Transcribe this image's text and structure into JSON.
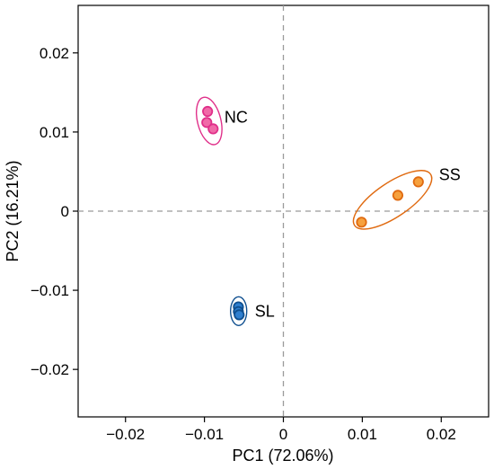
{
  "chart_data": {
    "type": "scatter",
    "title": "",
    "xlabel": "PC1 (72.06%)",
    "ylabel": "PC2 (16.21%)",
    "xlim": [
      -0.026,
      0.026
    ],
    "ylim": [
      -0.026,
      0.026
    ],
    "xticks": [
      -0.02,
      -0.01,
      0,
      0.01,
      0.02
    ],
    "xtick_labels": [
      "−0.02",
      "−0.01",
      "0",
      "0.01",
      "0.02"
    ],
    "yticks": [
      -0.02,
      -0.01,
      0,
      0.01,
      0.02
    ],
    "ytick_labels": [
      "−0.02",
      "−0.01",
      "0",
      "0.01",
      "0.02"
    ],
    "grid": false,
    "zero_lines": true,
    "series": [
      {
        "name": "NC",
        "color": "#e0308a",
        "fill": "#f06aa8",
        "points": [
          {
            "x": -0.0096,
            "y": 0.0126
          },
          {
            "x": -0.0097,
            "y": 0.0112
          },
          {
            "x": -0.0089,
            "y": 0.0104
          }
        ]
      },
      {
        "name": "SS",
        "color": "#e06a10",
        "fill": "#f6a13e",
        "points": [
          {
            "x": 0.0099,
            "y": -0.0014
          },
          {
            "x": 0.0145,
            "y": 0.002
          },
          {
            "x": 0.0171,
            "y": 0.0037
          }
        ]
      },
      {
        "name": "SL",
        "color": "#0f4f8f",
        "fill": "#2f7fcf",
        "points": [
          {
            "x": -0.0057,
            "y": -0.0121
          },
          {
            "x": -0.0057,
            "y": -0.0127
          },
          {
            "x": -0.0056,
            "y": -0.0131
          }
        ]
      }
    ]
  }
}
